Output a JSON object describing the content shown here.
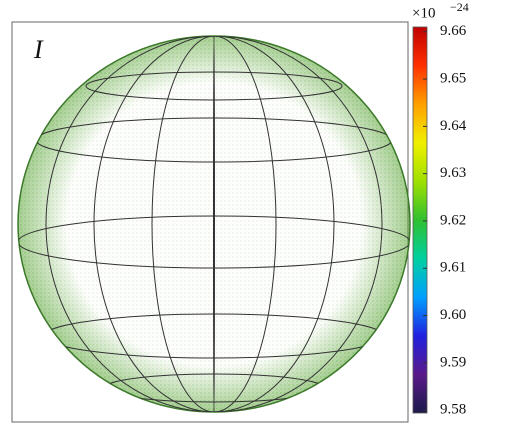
{
  "chart_data": {
    "type": "sphere-colormap",
    "label": "I",
    "colorbar": {
      "exponent_base": "×10",
      "exponent_power": "−24",
      "clim": [
        9.5794,
        9.661
      ],
      "ticks": [
        9.58,
        9.59,
        {
          "value": 9.6,
          "label": "9.60"
        },
        9.61,
        9.62,
        9.63,
        9.64,
        9.65,
        9.66
      ],
      "colormap": [
        "#1a1a4a",
        "#5a1a8a",
        "#2020e0",
        "#00a0ff",
        "#00d0a0",
        "#30c030",
        "#a0e000",
        "#f0f000",
        "#ffa000",
        "#ff3000",
        "#c00000"
      ]
    }
  }
}
